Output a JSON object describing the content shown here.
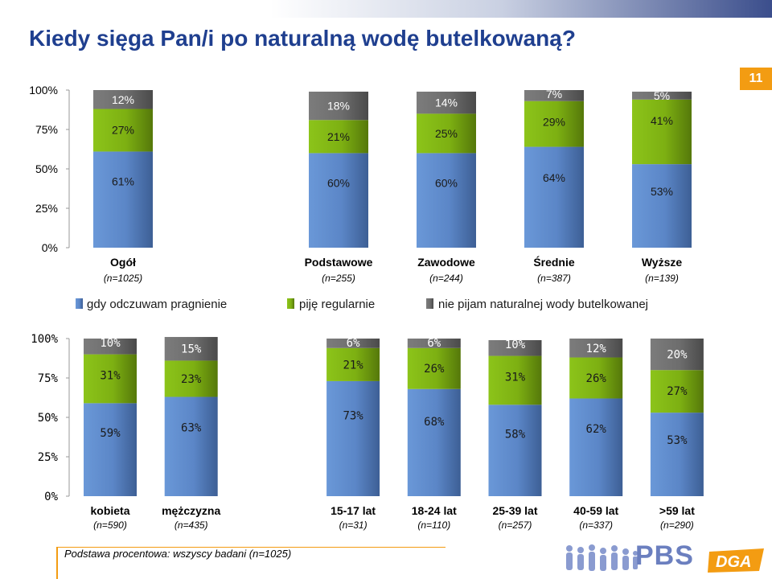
{
  "title": "Kiedy sięga Pan/i po naturalną wodę butelkowaną?",
  "page_number": "11",
  "colors": {
    "series1": "#5b86c7",
    "series2": "#7db012",
    "series3": "#6d6d6d",
    "title": "#1f3f8f",
    "accent": "#f39c12"
  },
  "legend": [
    "gdy odczuwam pragnienie",
    "piję regularnie",
    "nie pijam naturalnej wody butelkowanej"
  ],
  "footer": {
    "base_note": "Podstawa procentowa: wszyscy badani (n=1025)",
    "logo_pbs": "PBS",
    "logo_dga": "DGA"
  },
  "chart_data": [
    {
      "type": "bar",
      "stacked": true,
      "y_ticks": [
        "100%",
        "75%",
        "50%",
        "25%",
        "0%"
      ],
      "ylim": [
        0,
        100
      ],
      "categories": [
        "Ogół",
        "",
        "Podstawowe",
        "Zawodowe",
        "Średnie",
        "Wyższe"
      ],
      "sublabels": [
        "(n=1025)",
        "",
        "(n=255)",
        "(n=244)",
        "(n=387)",
        "(n=139)"
      ],
      "series": [
        {
          "name": "gdy odczuwam pragnienie",
          "values": [
            61,
            null,
            60,
            60,
            64,
            53
          ],
          "labels": [
            "61%",
            "",
            "60%",
            "60%",
            "64%",
            "53%"
          ]
        },
        {
          "name": "piję regularnie",
          "values": [
            27,
            null,
            21,
            25,
            29,
            41
          ],
          "labels": [
            "27%",
            "",
            "21%",
            "25%",
            "29%",
            "41%"
          ]
        },
        {
          "name": "nie pijam naturalnej wody butelkowanej",
          "values": [
            12,
            null,
            18,
            14,
            7,
            5
          ],
          "labels": [
            "12%",
            "",
            "18%",
            "14%",
            "7%",
            "5%"
          ]
        }
      ]
    },
    {
      "type": "bar",
      "stacked": true,
      "y_ticks": [
        "100%",
        "75%",
        "50%",
        "25%",
        "0%"
      ],
      "ylim": [
        0,
        100
      ],
      "categories": [
        "kobieta",
        "mężczyzna",
        "",
        "15-17 lat",
        "18-24 lat",
        "25-39 lat",
        "40-59 lat",
        ">59 lat"
      ],
      "sublabels": [
        "(n=590)",
        "(n=435)",
        "",
        "(n=31)",
        "(n=110)",
        "(n=257)",
        "(n=337)",
        "(n=290)"
      ],
      "series": [
        {
          "name": "gdy odczuwam pragnienie",
          "values": [
            59,
            63,
            null,
            73,
            68,
            58,
            62,
            53
          ],
          "labels": [
            "59%",
            "63%",
            "",
            "73%",
            "68%",
            "58%",
            "62%",
            "53%"
          ]
        },
        {
          "name": "piję regularnie",
          "values": [
            31,
            23,
            null,
            21,
            26,
            31,
            26,
            27
          ],
          "labels": [
            "31%",
            "23%",
            "",
            "21%",
            "26%",
            "31%",
            "26%",
            "27%"
          ]
        },
        {
          "name": "nie pijam naturalnej wody butelkowanej",
          "values": [
            10,
            15,
            null,
            6,
            6,
            10,
            12,
            20
          ],
          "labels": [
            "10%",
            "15%",
            "",
            "6%",
            "6%",
            "10%",
            "12%",
            "20%"
          ]
        }
      ]
    }
  ]
}
